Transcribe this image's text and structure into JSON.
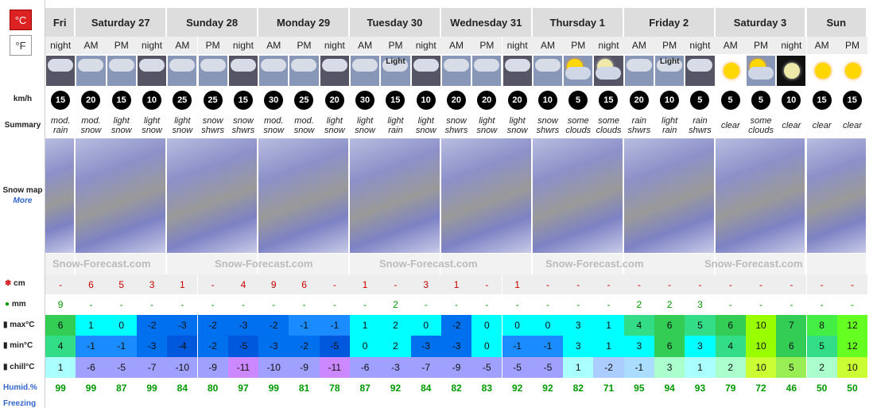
{
  "units": {
    "celsius": "°C",
    "fahrenheit": "°F"
  },
  "row_labels": {
    "wind": "km/h",
    "summary": "Summary",
    "snow_map": "Snow map",
    "more": "More",
    "snow": "cm",
    "rain": "mm",
    "max": "max°C",
    "min": "min°C",
    "chill": "chill°C",
    "humidity": "Humid.%",
    "freezing": "Freezing"
  },
  "days": [
    {
      "name": "Fri",
      "periods": [
        "night"
      ]
    },
    {
      "name": "Saturday 27",
      "periods": [
        "AM",
        "PM",
        "night"
      ]
    },
    {
      "name": "Sunday 28",
      "periods": [
        "AM",
        "PM",
        "night"
      ]
    },
    {
      "name": "Monday 29",
      "periods": [
        "AM",
        "PM",
        "night"
      ]
    },
    {
      "name": "Tuesday 30",
      "periods": [
        "AM",
        "PM",
        "night"
      ]
    },
    {
      "name": "Wednesday 31",
      "periods": [
        "AM",
        "PM",
        "night"
      ]
    },
    {
      "name": "Thursday 1",
      "periods": [
        "AM",
        "PM",
        "night"
      ]
    },
    {
      "name": "Friday 2",
      "periods": [
        "AM",
        "PM",
        "night"
      ]
    },
    {
      "name": "Saturday 3",
      "periods": [
        "AM",
        "PM",
        "night"
      ]
    },
    {
      "name": "Sun",
      "periods": [
        "AM",
        "PM"
      ]
    }
  ],
  "icon_labels": [
    null,
    null,
    null,
    null,
    null,
    null,
    null,
    null,
    null,
    null,
    null,
    "Light",
    null,
    null,
    null,
    null,
    null,
    null,
    null,
    null,
    "Light",
    null,
    null,
    null,
    null,
    null,
    null
  ],
  "wind": [
    15,
    20,
    15,
    10,
    25,
    25,
    15,
    30,
    25,
    20,
    30,
    15,
    10,
    20,
    20,
    20,
    10,
    5,
    15,
    20,
    10,
    5,
    5,
    5,
    10,
    15,
    15
  ],
  "summary": [
    "mod. rain",
    "mod. snow",
    "light snow",
    "light snow",
    "light snow",
    "snow shwrs",
    "snow shwrs",
    "mod. snow",
    "mod. snow",
    "light snow",
    "light snow",
    "light rain",
    "light snow",
    "snow shwrs",
    "light snow",
    "light snow",
    "snow shwrs",
    "some clouds",
    "some clouds",
    "rain shwrs",
    "light rain",
    "rain shwrs",
    "clear",
    "some clouds",
    "clear",
    "clear",
    "clear"
  ],
  "map_watermark": "Snow-Forecast.com",
  "snow_cm": [
    "-",
    6,
    5,
    3,
    1,
    "-",
    4,
    9,
    6,
    "-",
    1,
    "-",
    3,
    1,
    "-",
    1,
    "-",
    "-",
    "-",
    "-",
    "-",
    "-",
    "-",
    "-",
    "-",
    "-",
    "-"
  ],
  "rain_mm": [
    9,
    "-",
    "-",
    "-",
    "-",
    "-",
    "-",
    "-",
    "-",
    "-",
    "-",
    2,
    "-",
    "-",
    "-",
    "-",
    "-",
    "-",
    "-",
    2,
    2,
    3,
    "-",
    "-",
    "-",
    "-",
    "-"
  ],
  "max": [
    6,
    1,
    0,
    -2,
    -3,
    -2,
    -3,
    -2,
    -1,
    -1,
    1,
    2,
    0,
    -2,
    0,
    0,
    0,
    3,
    1,
    4,
    6,
    5,
    6,
    10,
    7,
    8,
    12
  ],
  "min": [
    4,
    -1,
    -1,
    -3,
    -4,
    -2,
    -5,
    -3,
    -2,
    -5,
    0,
    2,
    -3,
    -3,
    0,
    -1,
    -1,
    3,
    1,
    3,
    6,
    3,
    4,
    10,
    6,
    5,
    12
  ],
  "chill": [
    1,
    -6,
    -5,
    -7,
    -10,
    -9,
    -11,
    -10,
    -9,
    -11,
    -6,
    -3,
    -7,
    -9,
    -5,
    -5,
    -5,
    1,
    -2,
    -1,
    3,
    1,
    2,
    10,
    5,
    2,
    10
  ],
  "humidity": [
    99,
    99,
    87,
    99,
    84,
    80,
    97,
    99,
    81,
    78,
    87,
    92,
    84,
    82,
    83,
    92,
    92,
    82,
    71,
    95,
    94,
    93,
    79,
    72,
    46,
    50,
    50
  ]
}
